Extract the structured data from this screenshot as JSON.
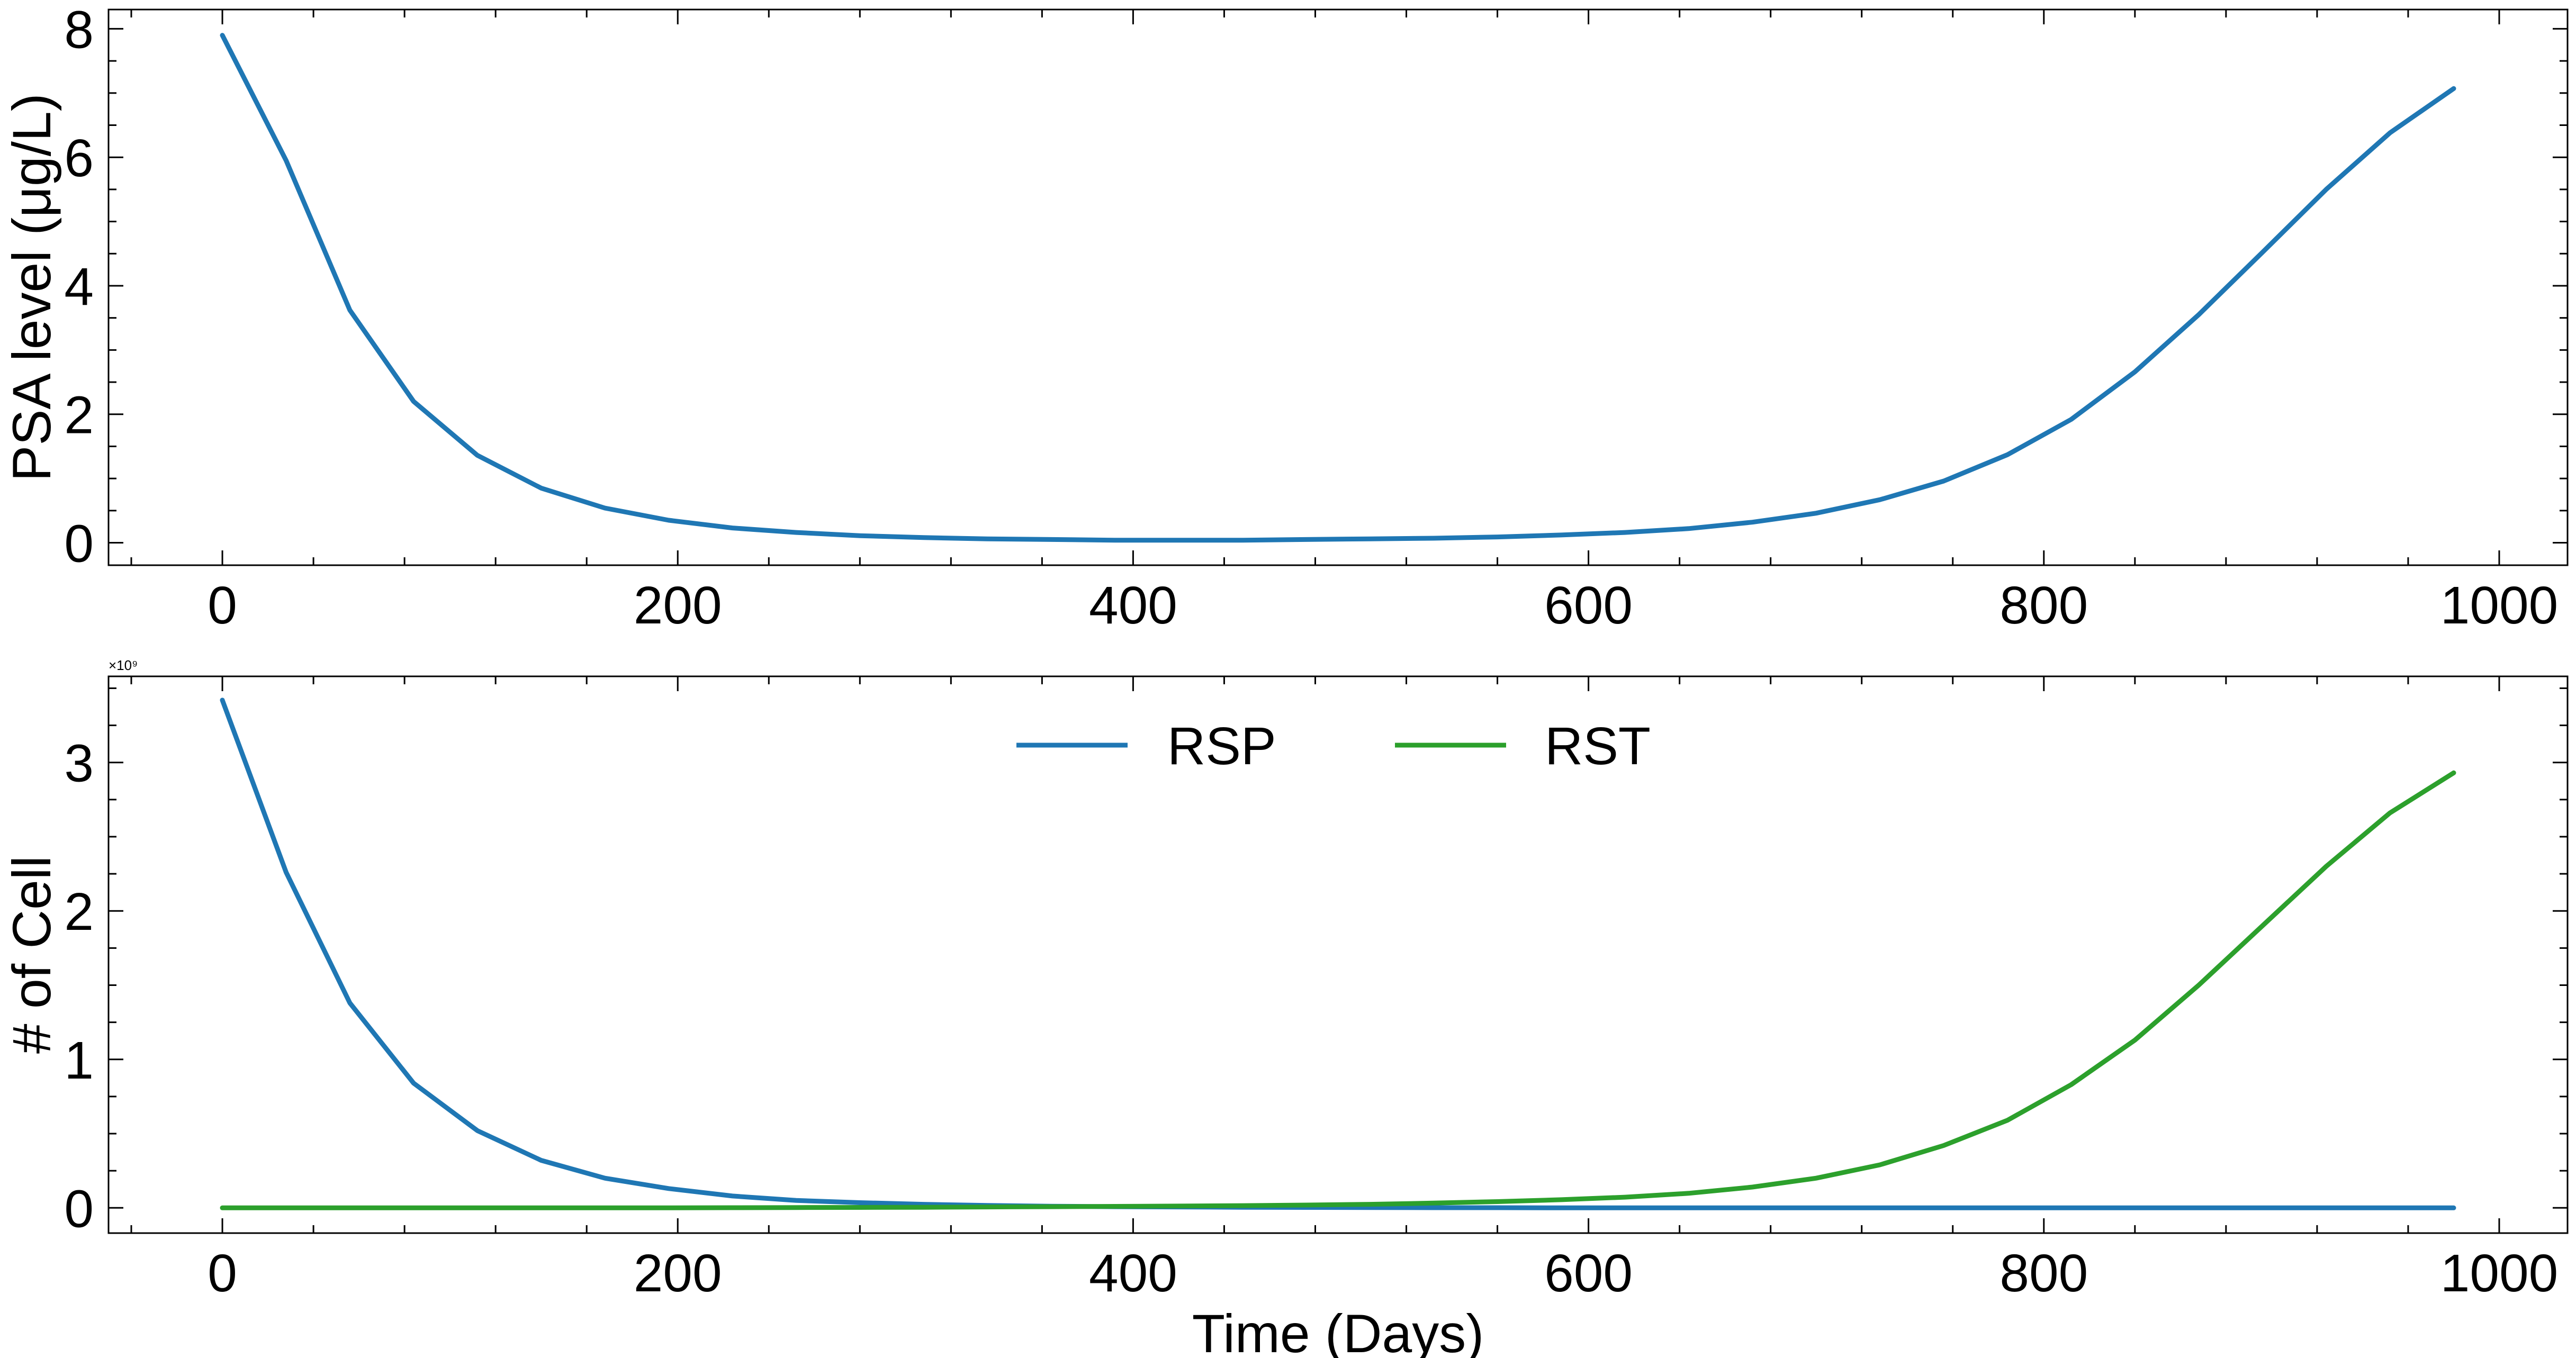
{
  "chart_data": [
    {
      "type": "line",
      "ylabel": "PSA level (μg/L)",
      "xlabel": "",
      "xlim": [
        -50,
        1030
      ],
      "ylim": [
        -0.35,
        8.3
      ],
      "xticks": [
        0,
        200,
        400,
        600,
        800,
        1000
      ],
      "yticks": [
        0,
        2,
        4,
        6,
        8
      ],
      "legend": "none",
      "grid": false,
      "x": [
        0,
        28,
        56,
        84,
        112,
        140,
        168,
        196,
        224,
        252,
        280,
        308,
        336,
        364,
        392,
        420,
        448,
        476,
        504,
        532,
        560,
        588,
        616,
        644,
        672,
        700,
        728,
        756,
        784,
        812,
        840,
        868,
        896,
        924,
        952,
        980
      ],
      "series": [
        {
          "name": "",
          "color": "#1f77b4",
          "values": [
            7.9,
            5.95,
            3.62,
            2.2,
            1.36,
            0.85,
            0.54,
            0.35,
            0.23,
            0.16,
            0.11,
            0.08,
            0.06,
            0.05,
            0.04,
            0.04,
            0.04,
            0.05,
            0.06,
            0.07,
            0.09,
            0.12,
            0.16,
            0.22,
            0.32,
            0.46,
            0.67,
            0.96,
            1.37,
            1.92,
            2.66,
            3.55,
            4.52,
            5.5,
            6.38,
            7.07
          ]
        }
      ]
    },
    {
      "type": "line",
      "ylabel": "# of Cell",
      "xlabel": "Time (Days)",
      "multiplier_label": "×10⁹",
      "xlim": [
        -50,
        1030
      ],
      "ylim": [
        -0.17,
        3.58
      ],
      "xticks": [
        0,
        200,
        400,
        600,
        800,
        1000
      ],
      "yticks": [
        0,
        1,
        2,
        3
      ],
      "legend": "upper center",
      "grid": false,
      "x": [
        0,
        28,
        56,
        84,
        112,
        140,
        168,
        196,
        224,
        252,
        280,
        308,
        336,
        364,
        392,
        420,
        448,
        476,
        504,
        532,
        560,
        588,
        616,
        644,
        672,
        700,
        728,
        756,
        784,
        812,
        840,
        868,
        896,
        924,
        952,
        980
      ],
      "series": [
        {
          "name": "RSP",
          "color": "#1f77b4",
          "values": [
            3.42,
            2.26,
            1.38,
            0.84,
            0.52,
            0.32,
            0.2,
            0.13,
            0.08,
            0.05,
            0.035,
            0.024,
            0.016,
            0.011,
            0.008,
            0.006,
            0.004,
            0.003,
            0.002,
            0.001,
            0.001,
            0.0,
            0.0,
            0.0,
            0.0,
            0.0,
            0.0,
            0.0,
            0.0,
            0.0,
            0.0,
            0.0,
            0.0,
            0.0,
            0.0,
            0.0
          ]
        },
        {
          "name": "RST",
          "color": "#2ca02c",
          "values": [
            0.0,
            0.0,
            0.0,
            0.0,
            0.0,
            0.0,
            0.0,
            0.0,
            0.001,
            0.002,
            0.003,
            0.004,
            0.006,
            0.008,
            0.01,
            0.012,
            0.015,
            0.019,
            0.024,
            0.032,
            0.042,
            0.055,
            0.072,
            0.098,
            0.14,
            0.2,
            0.29,
            0.42,
            0.59,
            0.83,
            1.13,
            1.5,
            1.9,
            2.3,
            2.66,
            2.93
          ]
        }
      ]
    }
  ]
}
